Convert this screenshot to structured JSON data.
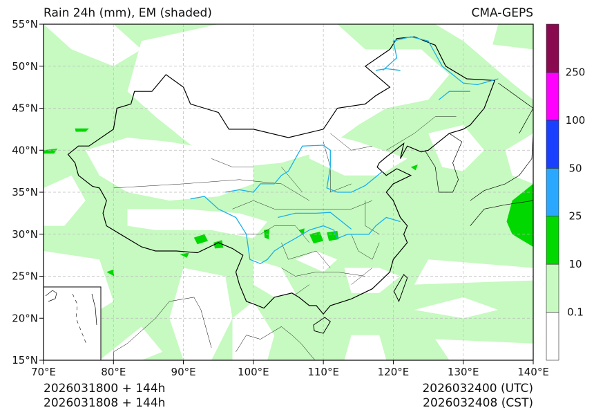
{
  "header": {
    "left_title": "Rain 24h (mm), EM (shaded)",
    "right_title": "CMA-GEPS"
  },
  "axes": {
    "x_ticks": [
      "70°E",
      "80°E",
      "90°E",
      "100°E",
      "110°E",
      "120°E",
      "130°E",
      "140°E"
    ],
    "y_ticks": [
      "15°N",
      "20°N",
      "25°N",
      "30°N",
      "35°N",
      "40°N",
      "45°N",
      "50°N",
      "55°N"
    ],
    "lon_range": [
      70,
      140
    ],
    "lat_range": [
      15,
      55
    ]
  },
  "colorbar": {
    "labels": [
      "0.1",
      "10",
      "25",
      "50",
      "100",
      "250"
    ],
    "colors": [
      "#ffffff",
      "#c6fac0",
      "#00d800",
      "#2aa8ff",
      "#1a40ff",
      "#ff00ff",
      "#8a0a50"
    ]
  },
  "footer": {
    "init_utc": "2026031800 + 144h",
    "init_cst": "2026031808 + 144h",
    "valid_utc": "2026032400 (UTC)",
    "valid_cst": "2026032408 (CST)"
  },
  "colors": {
    "light_green": "#c6fac0",
    "dark_green": "#00d800",
    "river": "#1ab0e8"
  }
}
